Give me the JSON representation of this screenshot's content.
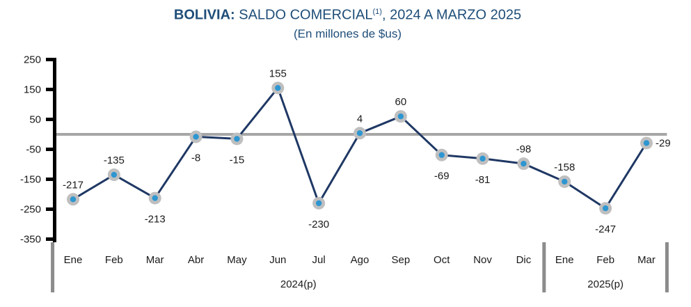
{
  "title": {
    "prefix": "BOLIVIA:",
    "main": " SALDO COMERCIAL",
    "superscript": "(1)",
    "suffix": ", 2024 A MARZO 2025",
    "subtitle": "(En millones de $us)"
  },
  "chart_data": {
    "type": "line",
    "categories": [
      "Ene",
      "Feb",
      "Mar",
      "Abr",
      "May",
      "Jun",
      "Jul",
      "Ago",
      "Sep",
      "Oct",
      "Nov",
      "Dic",
      "Ene",
      "Feb",
      "Mar"
    ],
    "values": [
      -217,
      -135,
      -213,
      -8,
      -15,
      155,
      -230,
      4,
      60,
      -69,
      -81,
      -98,
      -158,
      -247,
      -29
    ],
    "label_positions": [
      "above",
      "above",
      "below",
      "below",
      "below",
      "above",
      "below",
      "above",
      "above",
      "below",
      "below",
      "above",
      "above",
      "below",
      "right"
    ],
    "year_groups": [
      {
        "label": "2024(p)",
        "start": 0,
        "count": 12
      },
      {
        "label": "2025(p)",
        "start": 12,
        "count": 3
      }
    ],
    "yticks": [
      250,
      150,
      50,
      -50,
      -150,
      -250,
      -350
    ],
    "ylim": [
      -350,
      250
    ],
    "zero_line_value": 0,
    "legend": "none",
    "grid": "off",
    "colors": {
      "line": "#1F3864",
      "marker_fill": "#2E96D1",
      "marker_ring": "#BFBFBF",
      "zero_line": "#A6A6A6",
      "divider": "#8C8C8C",
      "axis": "#000000",
      "title": "#1F4E79",
      "text": "#1A1A1A"
    }
  }
}
